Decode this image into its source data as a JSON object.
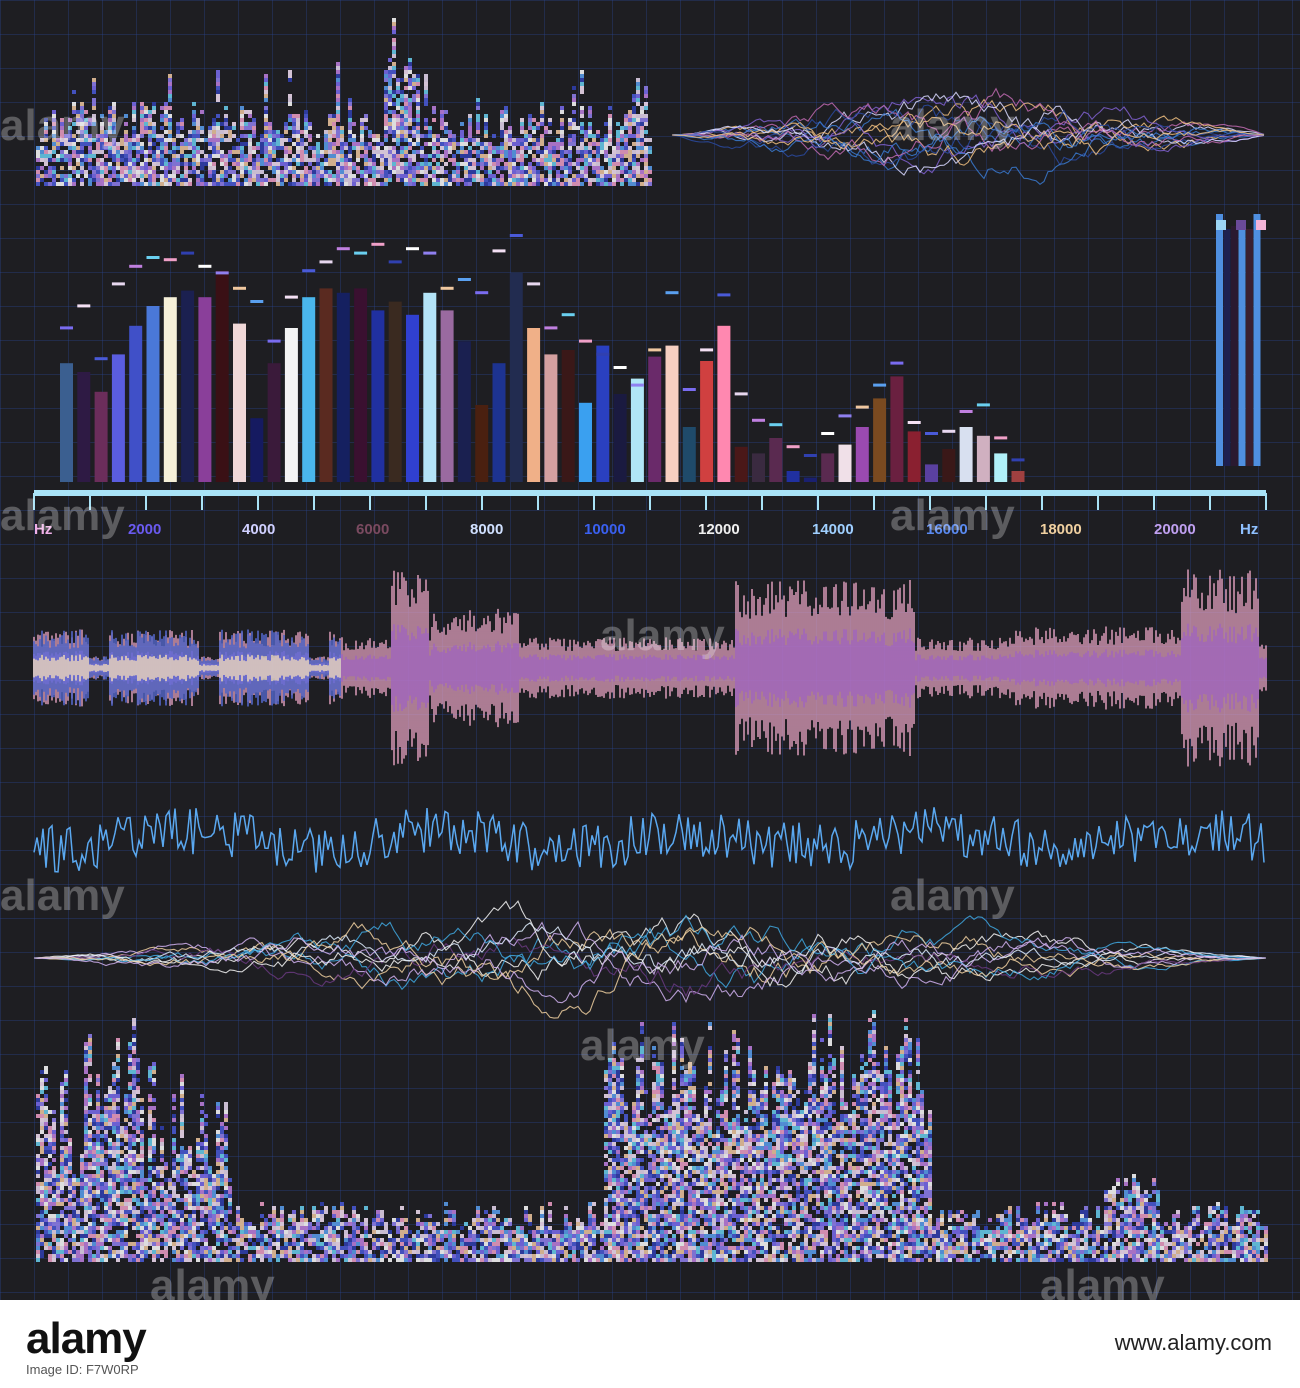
{
  "chart_data": {
    "type": "bar",
    "title": "",
    "xlabel": "Hz",
    "xlabel_right": "Hz",
    "tick_labels": [
      "2000",
      "4000",
      "6000",
      "8000",
      "10000",
      "12000",
      "14000",
      "16000",
      "18000",
      "20000"
    ],
    "values": [
      0.54,
      0.5,
      0.41,
      0.58,
      0.71,
      0.8,
      0.84,
      0.87,
      0.84,
      0.96,
      0.72,
      0.29,
      0.54,
      0.7,
      0.84,
      0.88,
      0.86,
      0.88,
      0.78,
      0.82,
      0.76,
      0.86,
      0.78,
      0.64,
      0.35,
      0.54,
      0.95,
      0.7,
      0.58,
      0.6,
      0.36,
      0.62,
      0.4,
      0.47,
      0.57,
      0.62,
      0.25,
      0.55,
      0.71,
      0.16,
      0.13,
      0.2,
      0.05,
      0.02,
      0.13,
      0.17,
      0.25,
      0.38,
      0.48,
      0.23,
      0.08,
      0.15,
      0.25,
      0.21,
      0.13,
      0.05
    ],
    "peaks": [
      0.68,
      0.78,
      0.54,
      0.88,
      0.96,
      1.0,
      0.99,
      1.02,
      0.96,
      0.93,
      0.86,
      0.8,
      0.62,
      0.82,
      0.94,
      0.98,
      1.04,
      1.02,
      1.06,
      0.98,
      1.04,
      1.02,
      0.86,
      0.9,
      0.84,
      1.03,
      1.1,
      0.88,
      0.68,
      0.74,
      0.62,
      0.56,
      0.5,
      0.42,
      0.58,
      0.84,
      0.4,
      0.58,
      0.83,
      0.38,
      0.26,
      0.24,
      0.14,
      0.1,
      0.2,
      0.28,
      0.32,
      0.42,
      0.52,
      0.25,
      0.2,
      0.21,
      0.3,
      0.33,
      0.18,
      0.08
    ],
    "colors": [
      "#3b5f90",
      "#2e1a44",
      "#6b2d5b",
      "#5a5de0",
      "#4050c8",
      "#4a78d8",
      "#f6f0d8",
      "#1b2050",
      "#8a3f9a",
      "#3a1015",
      "#f0d8d8",
      "#151a60",
      "#3a1a3a",
      "#f4f4f4",
      "#4ab6ec",
      "#5a2a20",
      "#152060",
      "#3a1030",
      "#2030a0",
      "#3a2a20",
      "#3040d0",
      "#b4e4f8",
      "#9a6aa0",
      "#1a2050",
      "#4a2010",
      "#1d3390",
      "#222c50",
      "#f0b088",
      "#d4a0a0",
      "#3a1818",
      "#3aa0f0",
      "#2a40c0",
      "#1a1a40",
      "#b0e6f6",
      "#6a2a6a",
      "#f6cfc0",
      "#1f4a6a",
      "#d04040",
      "#ff88b0",
      "#4a1818",
      "#3a2a40",
      "#5a2a50",
      "#2030a0",
      "#1a2070",
      "#5a2a50",
      "#f0e0e8",
      "#9a4ab0",
      "#7a4a20",
      "#6a2040",
      "#8a2030",
      "#5a40a0",
      "#3a1818",
      "#d8e0f0",
      "#d0b0c0",
      "#b0f0f8",
      "#a04040"
    ],
    "level_meters": [
      0.84,
      0.79,
      0.8,
      0.82,
      0.79,
      0.84
    ],
    "level_colors": [
      "#4f8fe0",
      "#1e2050",
      "#2a1a30",
      "#4f8fe0",
      "#3a2030",
      "#4f8fe0"
    ],
    "level_caps": [
      "#9cd6f4",
      "#6a4a9a",
      "#f4b4d8"
    ]
  },
  "watermark": "alamy",
  "footer": {
    "image_id": "Image ID: F7W0RP",
    "website": "www.alamy.com"
  }
}
